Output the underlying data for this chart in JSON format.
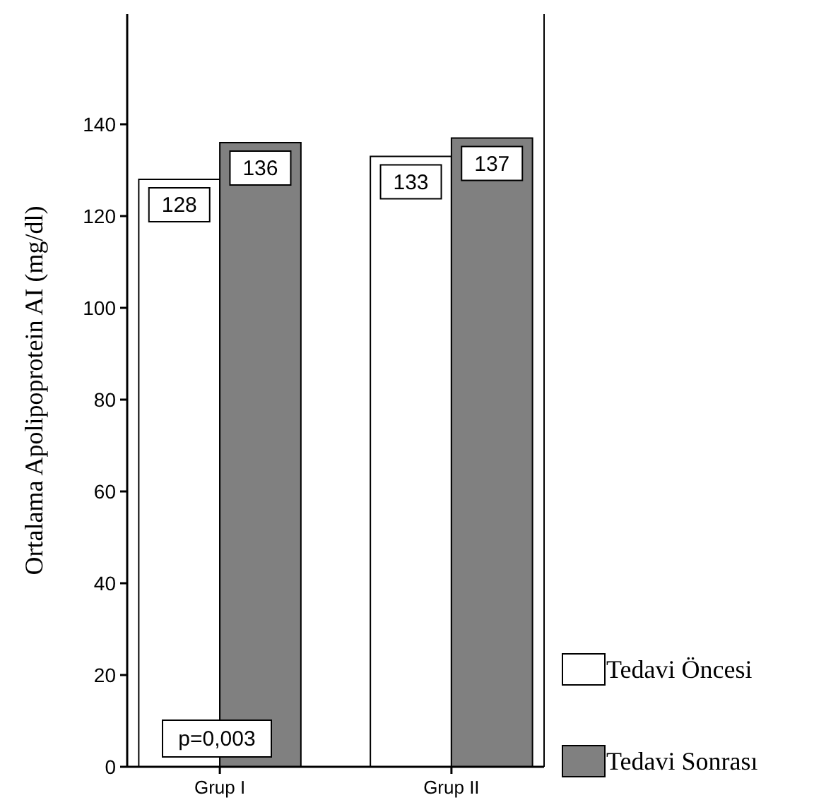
{
  "chart_data": {
    "type": "bar",
    "ylabel": "Ortalama Apolipoprotein AI (mg/dl)",
    "categories": [
      "Grup I",
      "Grup II"
    ],
    "series": [
      {
        "name": "Tedavi Öncesi",
        "color": "#ffffff",
        "values": [
          128,
          133
        ]
      },
      {
        "name": "Tedavi Sonrası",
        "color": "#808080",
        "values": [
          136,
          137
        ]
      }
    ],
    "ylim": [
      0,
      164
    ],
    "yticks": [
      0,
      20,
      40,
      60,
      80,
      100,
      120,
      140
    ],
    "data_labels": true,
    "legend": "right",
    "grid": false,
    "annotations": [
      "p=0,003"
    ]
  }
}
